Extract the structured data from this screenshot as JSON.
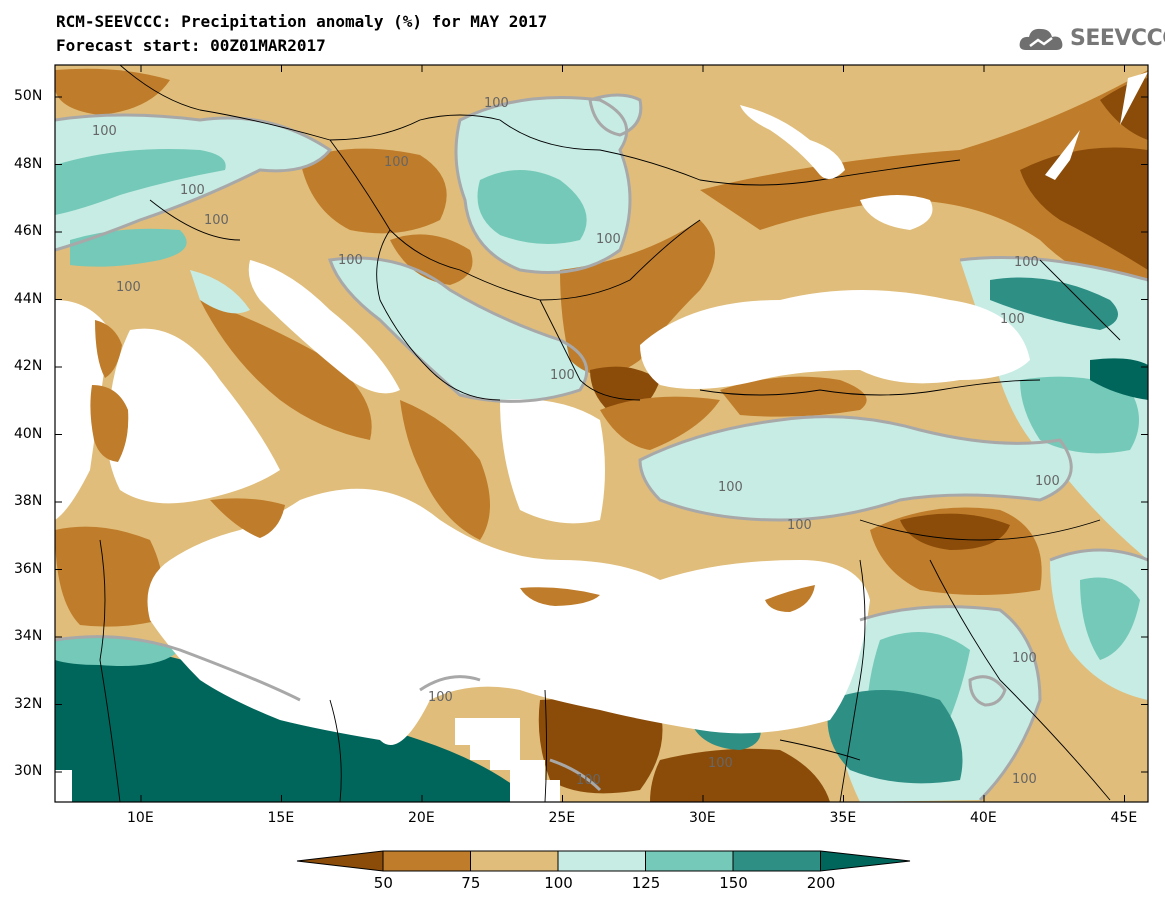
{
  "title": "RCM-SEEVCCC: Precipitation anomaly (%) for MAY 2017",
  "subtitle": "Forecast start: 00Z01MAR2017",
  "logo_text": "SEEVCCC",
  "latitude_labels": [
    "50N",
    "48N",
    "46N",
    "44N",
    "42N",
    "40N",
    "38N",
    "36N",
    "34N",
    "32N",
    "30N"
  ],
  "longitude_labels": [
    "10E",
    "15E",
    "20E",
    "25E",
    "30E",
    "35E",
    "40E",
    "45E"
  ],
  "contour_label": "100",
  "colorbar": {
    "labels": [
      "50",
      "75",
      "100",
      "125",
      "150",
      "200"
    ],
    "colors": [
      "#8b4c0a",
      "#bf7c2a",
      "#e0bd7a",
      "#c6ece4",
      "#74c9b8",
      "#2e8f85",
      "#00665b"
    ]
  },
  "colors": {
    "sea": "#ffffff",
    "contour_line": "#a8a8a8",
    "borders": "#000000"
  }
}
